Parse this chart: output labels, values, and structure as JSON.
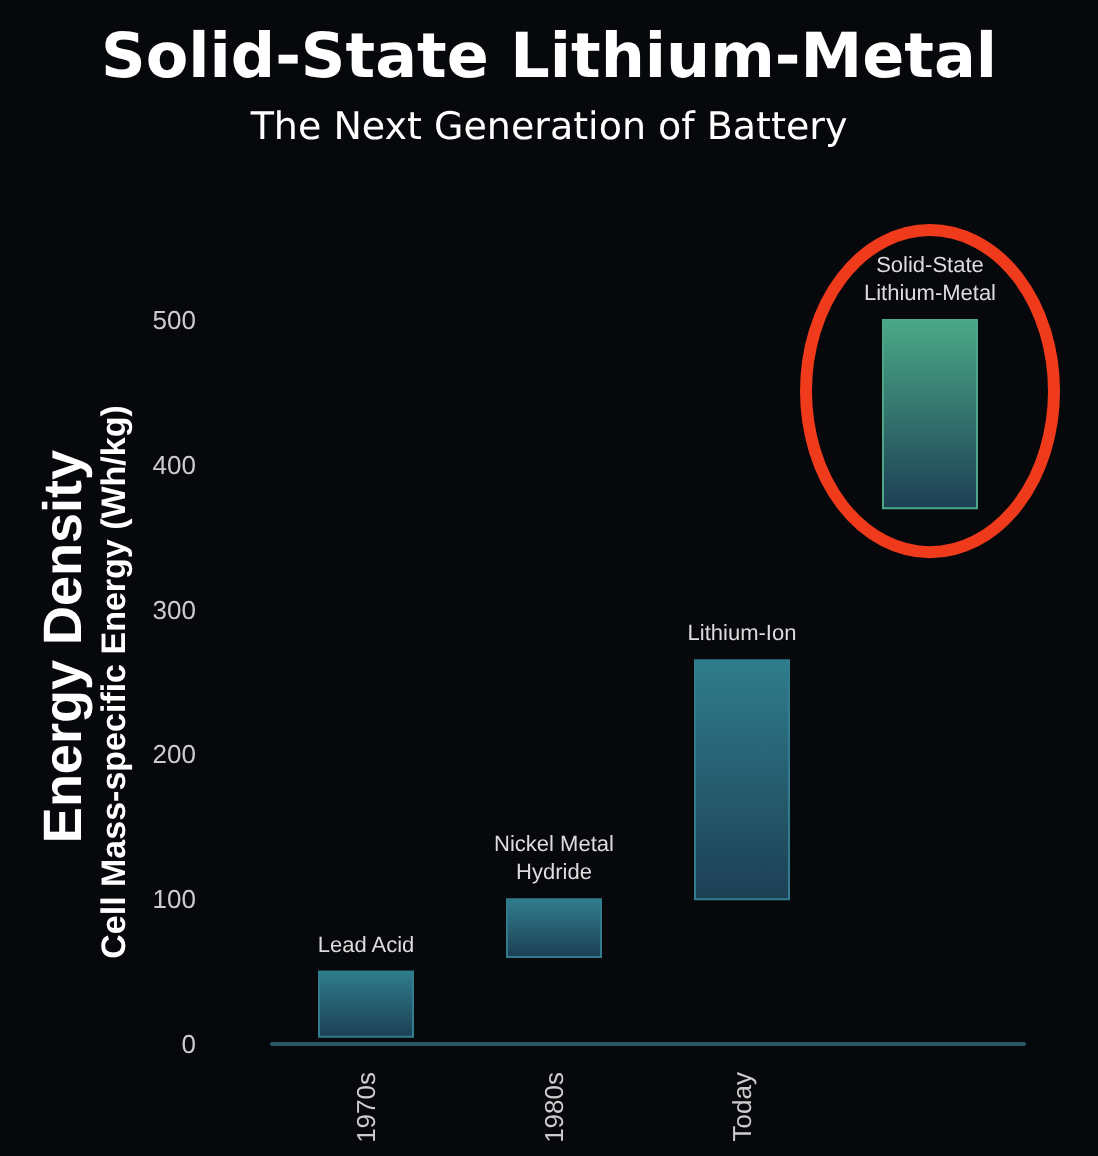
{
  "chart_data": {
    "type": "bar",
    "title": "Solid-State Lithium-Metal",
    "subtitle": "The Next Generation of Battery",
    "ylabel": "Cell Mass-specific Energy (Wh/kg)",
    "annotations": [
      "Energy Density"
    ],
    "categories": [
      "1970s",
      "1980s",
      "Today",
      null
    ],
    "base": [
      5,
      60,
      100,
      370
    ],
    "values": [
      45,
      40,
      165,
      130
    ],
    "colors": [
      "#2f7d8c",
      "#2f7d8c",
      "#2f7d8c",
      "#4aa886"
    ],
    "value_labels": [
      "Lead Acid",
      "Nickel Metal\nHydride",
      "Lithium-Ion",
      "Solid-State\nLithium-Metal"
    ],
    "ylim": [
      0,
      500
    ],
    "yticks": [
      0,
      100,
      200,
      300,
      400,
      500
    ],
    "grid": false
  }
}
